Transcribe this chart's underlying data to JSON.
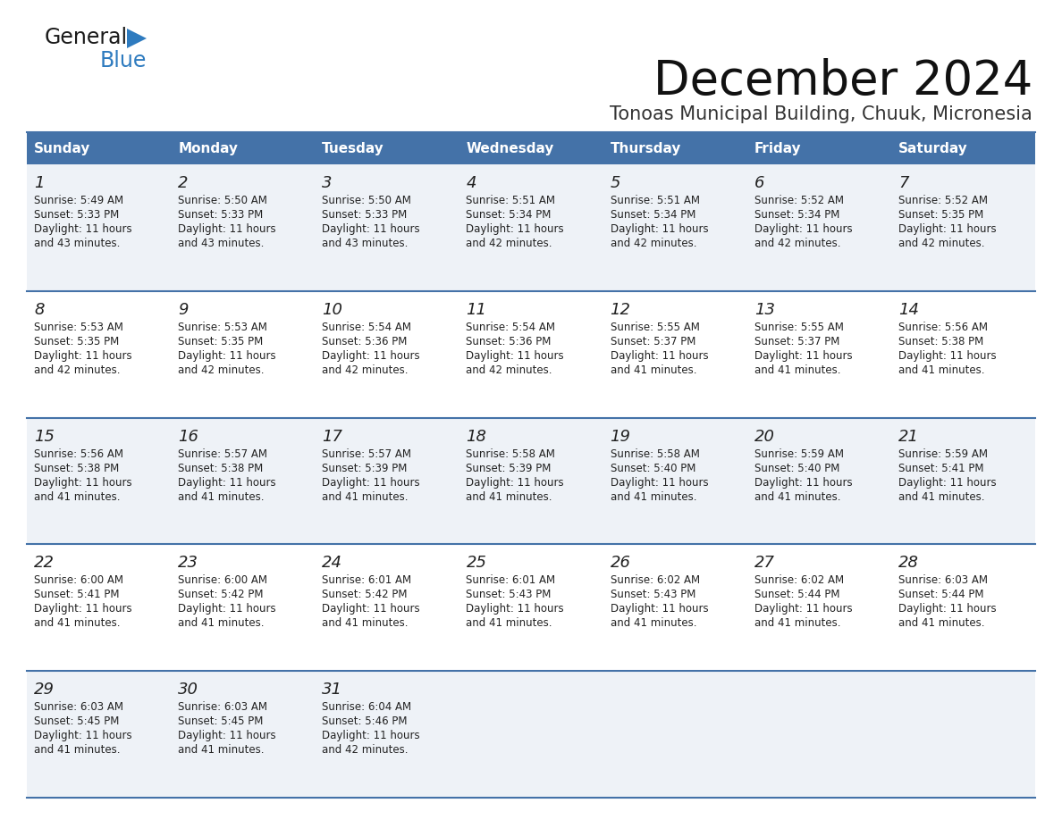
{
  "title": "December 2024",
  "subtitle": "Tonoas Municipal Building, Chuuk, Micronesia",
  "header_bg_color": "#4472a8",
  "header_text_color": "#ffffff",
  "days_of_week": [
    "Sunday",
    "Monday",
    "Tuesday",
    "Wednesday",
    "Thursday",
    "Friday",
    "Saturday"
  ],
  "odd_row_bg": "#eef2f7",
  "even_row_bg": "#ffffff",
  "separator_color": "#4472a8",
  "text_color": "#222222",
  "calendar": [
    [
      {
        "day": 1,
        "sunrise": "5:49 AM",
        "sunset": "5:33 PM",
        "daylight_h": "11 hours",
        "daylight_m": "and 43 minutes."
      },
      {
        "day": 2,
        "sunrise": "5:50 AM",
        "sunset": "5:33 PM",
        "daylight_h": "11 hours",
        "daylight_m": "and 43 minutes."
      },
      {
        "day": 3,
        "sunrise": "5:50 AM",
        "sunset": "5:33 PM",
        "daylight_h": "11 hours",
        "daylight_m": "and 43 minutes."
      },
      {
        "day": 4,
        "sunrise": "5:51 AM",
        "sunset": "5:34 PM",
        "daylight_h": "11 hours",
        "daylight_m": "and 42 minutes."
      },
      {
        "day": 5,
        "sunrise": "5:51 AM",
        "sunset": "5:34 PM",
        "daylight_h": "11 hours",
        "daylight_m": "and 42 minutes."
      },
      {
        "day": 6,
        "sunrise": "5:52 AM",
        "sunset": "5:34 PM",
        "daylight_h": "11 hours",
        "daylight_m": "and 42 minutes."
      },
      {
        "day": 7,
        "sunrise": "5:52 AM",
        "sunset": "5:35 PM",
        "daylight_h": "11 hours",
        "daylight_m": "and 42 minutes."
      }
    ],
    [
      {
        "day": 8,
        "sunrise": "5:53 AM",
        "sunset": "5:35 PM",
        "daylight_h": "11 hours",
        "daylight_m": "and 42 minutes."
      },
      {
        "day": 9,
        "sunrise": "5:53 AM",
        "sunset": "5:35 PM",
        "daylight_h": "11 hours",
        "daylight_m": "and 42 minutes."
      },
      {
        "day": 10,
        "sunrise": "5:54 AM",
        "sunset": "5:36 PM",
        "daylight_h": "11 hours",
        "daylight_m": "and 42 minutes."
      },
      {
        "day": 11,
        "sunrise": "5:54 AM",
        "sunset": "5:36 PM",
        "daylight_h": "11 hours",
        "daylight_m": "and 42 minutes."
      },
      {
        "day": 12,
        "sunrise": "5:55 AM",
        "sunset": "5:37 PM",
        "daylight_h": "11 hours",
        "daylight_m": "and 41 minutes."
      },
      {
        "day": 13,
        "sunrise": "5:55 AM",
        "sunset": "5:37 PM",
        "daylight_h": "11 hours",
        "daylight_m": "and 41 minutes."
      },
      {
        "day": 14,
        "sunrise": "5:56 AM",
        "sunset": "5:38 PM",
        "daylight_h": "11 hours",
        "daylight_m": "and 41 minutes."
      }
    ],
    [
      {
        "day": 15,
        "sunrise": "5:56 AM",
        "sunset": "5:38 PM",
        "daylight_h": "11 hours",
        "daylight_m": "and 41 minutes."
      },
      {
        "day": 16,
        "sunrise": "5:57 AM",
        "sunset": "5:38 PM",
        "daylight_h": "11 hours",
        "daylight_m": "and 41 minutes."
      },
      {
        "day": 17,
        "sunrise": "5:57 AM",
        "sunset": "5:39 PM",
        "daylight_h": "11 hours",
        "daylight_m": "and 41 minutes."
      },
      {
        "day": 18,
        "sunrise": "5:58 AM",
        "sunset": "5:39 PM",
        "daylight_h": "11 hours",
        "daylight_m": "and 41 minutes."
      },
      {
        "day": 19,
        "sunrise": "5:58 AM",
        "sunset": "5:40 PM",
        "daylight_h": "11 hours",
        "daylight_m": "and 41 minutes."
      },
      {
        "day": 20,
        "sunrise": "5:59 AM",
        "sunset": "5:40 PM",
        "daylight_h": "11 hours",
        "daylight_m": "and 41 minutes."
      },
      {
        "day": 21,
        "sunrise": "5:59 AM",
        "sunset": "5:41 PM",
        "daylight_h": "11 hours",
        "daylight_m": "and 41 minutes."
      }
    ],
    [
      {
        "day": 22,
        "sunrise": "6:00 AM",
        "sunset": "5:41 PM",
        "daylight_h": "11 hours",
        "daylight_m": "and 41 minutes."
      },
      {
        "day": 23,
        "sunrise": "6:00 AM",
        "sunset": "5:42 PM",
        "daylight_h": "11 hours",
        "daylight_m": "and 41 minutes."
      },
      {
        "day": 24,
        "sunrise": "6:01 AM",
        "sunset": "5:42 PM",
        "daylight_h": "11 hours",
        "daylight_m": "and 41 minutes."
      },
      {
        "day": 25,
        "sunrise": "6:01 AM",
        "sunset": "5:43 PM",
        "daylight_h": "11 hours",
        "daylight_m": "and 41 minutes."
      },
      {
        "day": 26,
        "sunrise": "6:02 AM",
        "sunset": "5:43 PM",
        "daylight_h": "11 hours",
        "daylight_m": "and 41 minutes."
      },
      {
        "day": 27,
        "sunrise": "6:02 AM",
        "sunset": "5:44 PM",
        "daylight_h": "11 hours",
        "daylight_m": "and 41 minutes."
      },
      {
        "day": 28,
        "sunrise": "6:03 AM",
        "sunset": "5:44 PM",
        "daylight_h": "11 hours",
        "daylight_m": "and 41 minutes."
      }
    ],
    [
      {
        "day": 29,
        "sunrise": "6:03 AM",
        "sunset": "5:45 PM",
        "daylight_h": "11 hours",
        "daylight_m": "and 41 minutes."
      },
      {
        "day": 30,
        "sunrise": "6:03 AM",
        "sunset": "5:45 PM",
        "daylight_h": "11 hours",
        "daylight_m": "and 41 minutes."
      },
      {
        "day": 31,
        "sunrise": "6:04 AM",
        "sunset": "5:46 PM",
        "daylight_h": "11 hours",
        "daylight_m": "and 42 minutes."
      },
      null,
      null,
      null,
      null
    ]
  ],
  "logo_text_general": "General",
  "logo_text_blue": "Blue",
  "logo_color_general": "#1a1a1a",
  "logo_color_blue": "#2e7bbf"
}
